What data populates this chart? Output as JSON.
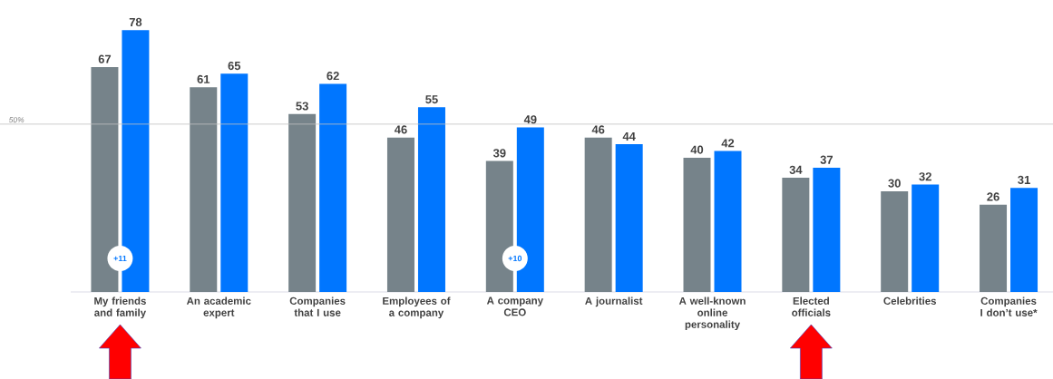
{
  "chart_data": {
    "type": "bar",
    "categories": [
      "My friends and family",
      "An academic expert",
      "Companies that I use",
      "Employees of a company",
      "A company CEO",
      "A journalist",
      "A well-known online personality",
      "Elected officials",
      "Celebrities",
      "Companies I don’t use*"
    ],
    "series": [
      {
        "color": "#76838a",
        "values": [
          67,
          61,
          53,
          46,
          39,
          46,
          40,
          34,
          30,
          26
        ]
      },
      {
        "color": "#0076ff",
        "values": [
          78,
          65,
          62,
          55,
          49,
          44,
          42,
          37,
          32,
          31
        ]
      }
    ],
    "data_labels": true,
    "ref_lines": [
      {
        "axis": "y",
        "value": 50,
        "label": "50%",
        "color": "#bfbfbf"
      }
    ],
    "annotations": [
      {
        "text": "+11",
        "x": "My friends and family",
        "y": 10
      },
      {
        "text": "+10",
        "x": "A company CEO",
        "y": 10
      }
    ]
  }
}
